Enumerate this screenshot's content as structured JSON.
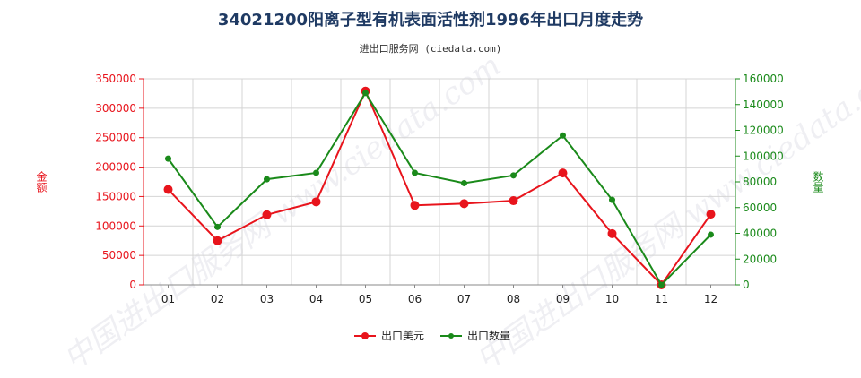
{
  "title": "34021200阳离子型有机表面活性剂1996年出口月度走势",
  "subtitle": "进出口服务网 (ciedata.com)",
  "watermark": "中国进出口服务网 www.ciedata.com",
  "colors": {
    "left_axis": "#e8141c",
    "right_axis": "#1a8a1a",
    "grid": "#d4d4d4",
    "title": "#1f3a63"
  },
  "chart_data": {
    "type": "line",
    "categories": [
      "01",
      "02",
      "03",
      "04",
      "05",
      "06",
      "07",
      "08",
      "09",
      "10",
      "11",
      "12"
    ],
    "ylabel_left": "金额",
    "ylabel_right": "数量",
    "ylim_left": [
      0,
      350000
    ],
    "ylim_right": [
      0,
      160000
    ],
    "yticks_left": [
      "0",
      "50000",
      "100000",
      "150000",
      "200000",
      "250000",
      "300000",
      "350000"
    ],
    "yticks_right": [
      "0",
      "20000",
      "40000",
      "60000",
      "80000",
      "100000",
      "120000",
      "140000",
      "160000"
    ],
    "grid": true,
    "legend_position": "bottom-center",
    "series": [
      {
        "name": "出口美元",
        "axis": "left",
        "color": "#e8141c",
        "values": [
          162000,
          75000,
          119000,
          141000,
          329000,
          135000,
          138000,
          143000,
          190000,
          87000,
          0,
          120000
        ]
      },
      {
        "name": "出口数量",
        "axis": "right",
        "color": "#1a8a1a",
        "values": [
          98000,
          45000,
          82000,
          87000,
          149000,
          87000,
          79000,
          85000,
          116000,
          66000,
          0,
          39000
        ]
      }
    ]
  }
}
